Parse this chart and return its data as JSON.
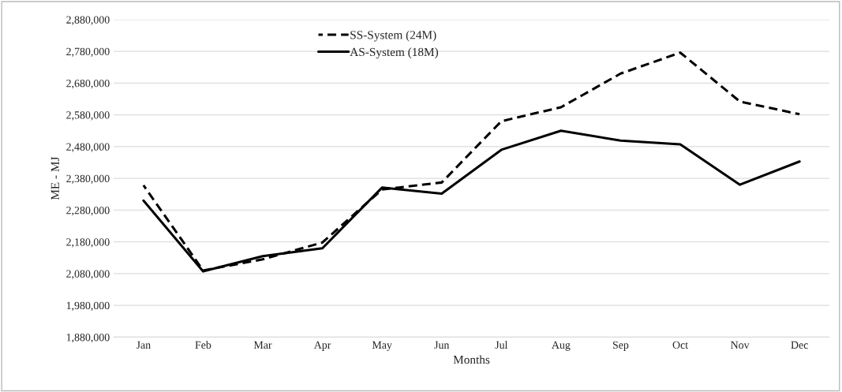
{
  "chart_data": {
    "type": "line",
    "xlabel": "Months",
    "ylabel": "ME - MJ",
    "categories": [
      "Jan",
      "Feb",
      "Mar",
      "Apr",
      "May",
      "Jun",
      "Jul",
      "Aug",
      "Sep",
      "Oct",
      "Nov",
      "Dec"
    ],
    "series": [
      {
        "name": "SS-System (24M)",
        "color": "#000000",
        "line_style": "dashed",
        "values": [
          2358000,
          2090000,
          2125000,
          2178000,
          2345000,
          2367000,
          2560000,
          2604000,
          2710000,
          2776000,
          2622000,
          2582000
        ]
      },
      {
        "name": "AS-System (18M)",
        "color": "#000000",
        "line_style": "solid",
        "values": [
          2310000,
          2087000,
          2135000,
          2160000,
          2351000,
          2332000,
          2470000,
          2530000,
          2499000,
          2487000,
          2360000,
          2433000
        ]
      }
    ],
    "ylim": [
      1880000,
      2880000
    ],
    "yticks": [
      {
        "value": 1880000,
        "label": "1,880,000"
      },
      {
        "value": 1980000,
        "label": "1,980,000"
      },
      {
        "value": 2080000,
        "label": "2,080,000"
      },
      {
        "value": 2180000,
        "label": "2,180,000"
      },
      {
        "value": 2280000,
        "label": "2,280,000"
      },
      {
        "value": 2380000,
        "label": "2,380,000"
      },
      {
        "value": 2480000,
        "label": "2,480,000"
      },
      {
        "value": 2580000,
        "label": "2,580,000"
      },
      {
        "value": 2680000,
        "label": "2,680,000"
      },
      {
        "value": 2780000,
        "label": "2,780,000"
      },
      {
        "value": 2880000,
        "label": "2,880,000"
      }
    ],
    "grid": "y",
    "legend": "top",
    "marker": "none"
  }
}
